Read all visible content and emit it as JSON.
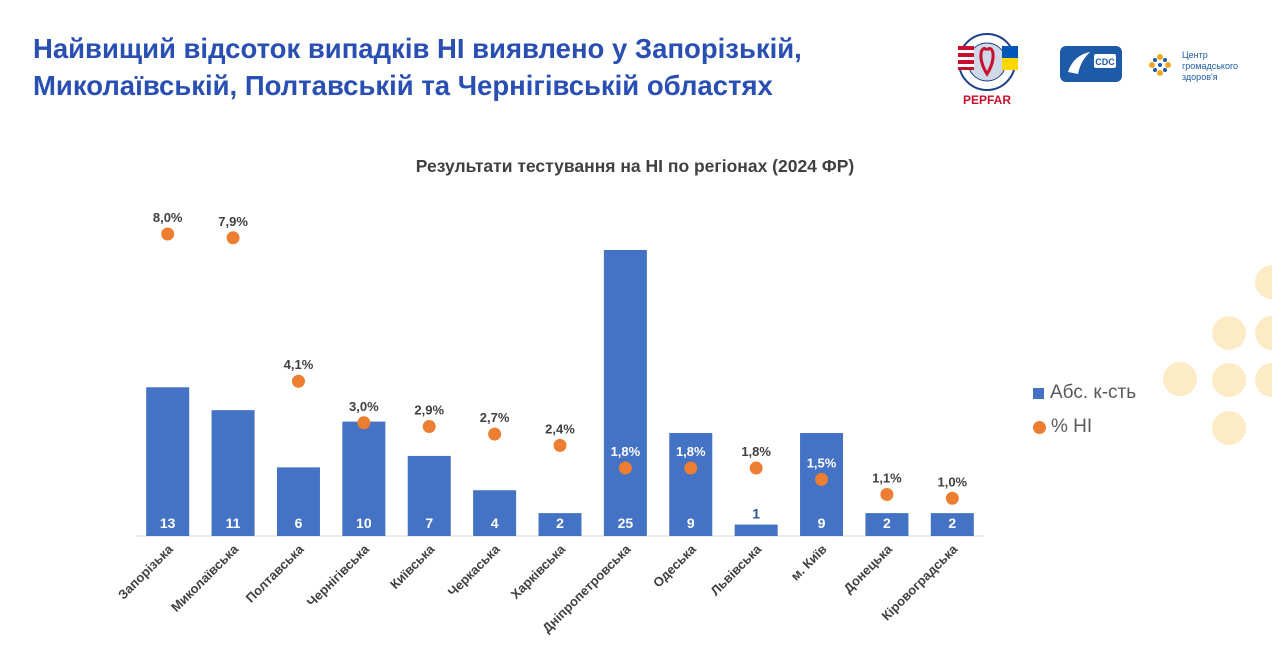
{
  "slide": {
    "title_line1": "Найвищий відсоток випадків НІ виявлено у Запорізькій,",
    "title_line2": "Миколаївській, Полтавській та Чернігівській областях"
  },
  "logos": {
    "pepfar_label": "PEPFAR",
    "cdc_label": "CDC",
    "phc_line1": "Центр",
    "phc_line2": "громадського",
    "phc_line3": "здоров'я",
    "colors": {
      "pepfar_red": "#c8102e",
      "brand_blue": "#1d5aa8",
      "phc_orange": "#f5a623"
    }
  },
  "chart_data": {
    "type": "bar",
    "title": "Результати тестування на НІ по регіонах (2024 ФР)",
    "categories": [
      "Запорізька",
      "Миколаївська",
      "Полтавська",
      "Чернігівська",
      "Київська",
      "Черкаська",
      "Харківська",
      "Дніпропетровська",
      "Одеська",
      "Львівська",
      "м. Київ",
      "Донецька",
      "Кіровоградська"
    ],
    "series": [
      {
        "name": "Абс. к-сть",
        "kind": "bar",
        "color": "#4472c4",
        "values": [
          13,
          11,
          6,
          10,
          7,
          4,
          2,
          25,
          9,
          1,
          9,
          2,
          2
        ]
      },
      {
        "name": "% НІ",
        "kind": "dot",
        "color": "#ed7d31",
        "values": [
          8.0,
          7.9,
          4.1,
          3.0,
          2.9,
          2.7,
          2.4,
          1.8,
          1.8,
          1.8,
          1.5,
          1.1,
          1.0
        ],
        "labels": [
          "8,0%",
          "7,9%",
          "4,1%",
          "3,0%",
          "2,9%",
          "2,7%",
          "2,4%",
          "1,8%",
          "1,8%",
          "1,8%",
          "1,5%",
          "1,1%",
          "1,0%"
        ]
      }
    ],
    "legend_position": "right",
    "grid": false
  }
}
